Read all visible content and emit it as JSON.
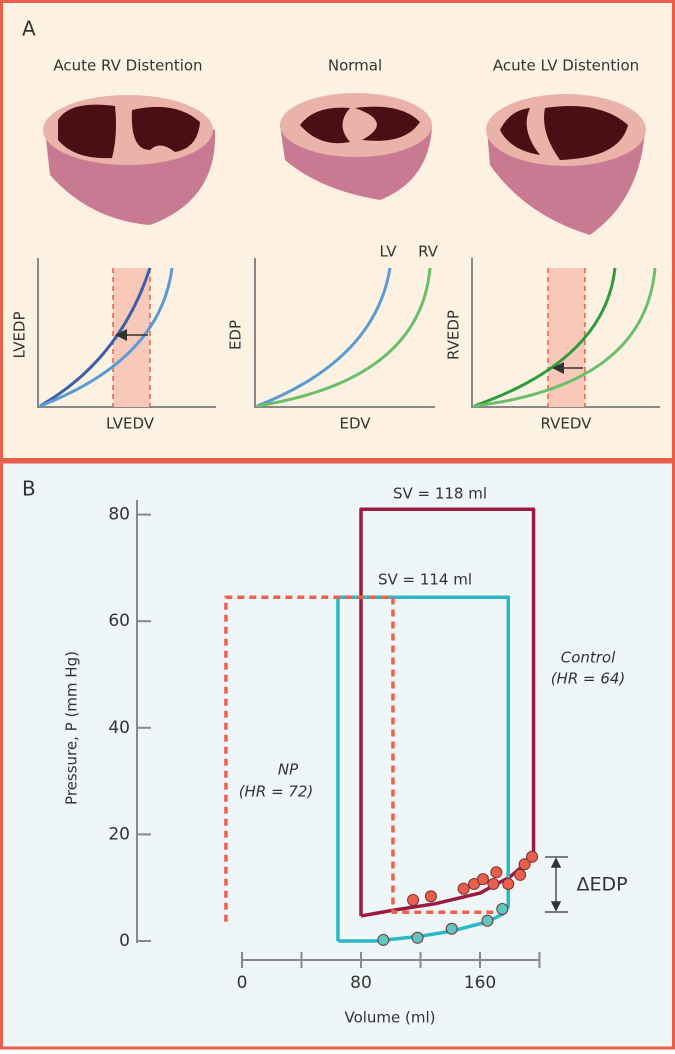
{
  "panel_a": {
    "label": "A",
    "columns": [
      {
        "title": "Acute RV Distention",
        "y_label": "LVEDP",
        "x_label": "LVEDV"
      },
      {
        "title": "Normal",
        "y_label": "EDP",
        "x_label": "EDV",
        "curve_labels": [
          "LV",
          "RV"
        ]
      },
      {
        "title": "Acute LV Distention",
        "y_label": "RVEDP",
        "x_label": "RVEDV"
      }
    ]
  },
  "chart_data": {
    "type": "line",
    "panel_label": "B",
    "y_label": "Pressure, P (mm Hg)",
    "x_label": "Volume (ml)",
    "xlim": [
      0,
      200
    ],
    "xticks": [
      0,
      80,
      160
    ],
    "xticks_minor": [
      40,
      120,
      200
    ],
    "ylim": [
      0,
      83
    ],
    "yticks": [
      0,
      20,
      40,
      60,
      80
    ],
    "series": [
      {
        "style": "solid",
        "color": "#9b1b3f",
        "x": [
          80,
          80,
          196,
          196,
          180,
          160,
          130,
          100,
          80
        ],
        "values": [
          4.7,
          81,
          81,
          15.8,
          12,
          9,
          7,
          5.7,
          4.7
        ]
      },
      {
        "style": "solid",
        "color": "#2bb8c4",
        "x": [
          64.5,
          64.5,
          179,
          179,
          175,
          165,
          140,
          120,
          100,
          90,
          64.5
        ],
        "values": [
          0,
          64.5,
          64.5,
          6.4,
          5,
          3.6,
          1.8,
          0.9,
          0.3,
          0,
          0
        ]
      },
      {
        "style": "dashed",
        "color": "#f0604f",
        "x": [
          -10.8,
          -10.8,
          101.5,
          101.5,
          170
        ],
        "values": [
          3.6,
          64.5,
          64.5,
          5.4,
          5.4
        ]
      },
      {
        "style": "markers",
        "color": "#e8604c",
        "x": [
          115,
          127,
          149,
          156,
          162,
          169,
          171,
          179,
          187,
          190,
          195
        ],
        "values": [
          7.7,
          8.4,
          9.8,
          10.7,
          11.6,
          10.7,
          12.9,
          10.7,
          12.4,
          14.4,
          15.8
        ]
      },
      {
        "style": "markers",
        "color": "#5cc8c0",
        "x": [
          95,
          118,
          141,
          165,
          175
        ],
        "values": [
          0.2,
          0.6,
          2.3,
          3.8,
          6.0
        ]
      }
    ],
    "annotations": [
      "SV = 118 ml",
      "SV = 114 ml",
      "Control",
      "(HR = 64)",
      "NP",
      "(HR = 72)",
      "ΔEDP"
    ]
  }
}
